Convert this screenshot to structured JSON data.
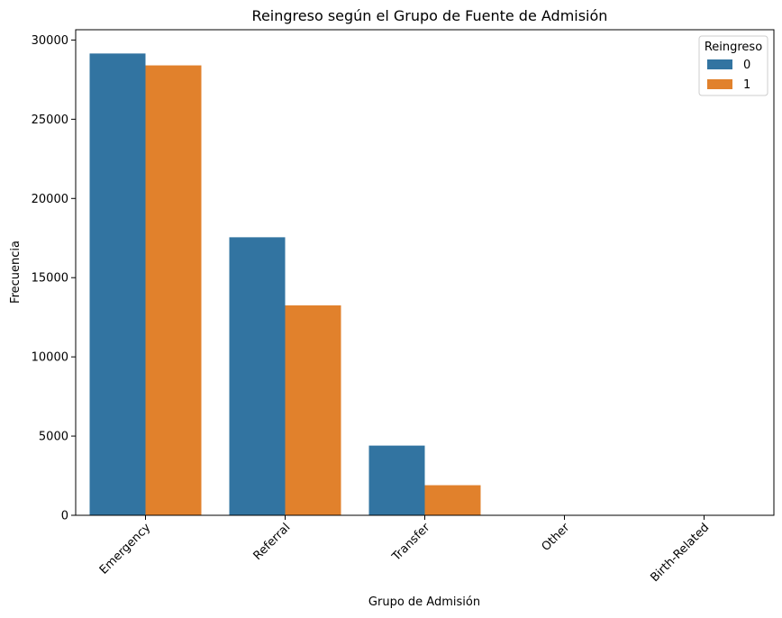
{
  "chart_data": {
    "type": "bar",
    "title": "Reingreso según el Grupo de Fuente de Admisión",
    "xlabel": "Grupo de Admisión",
    "ylabel": "Frecuencia",
    "categories": [
      "Emergency",
      "Referral",
      "Transfer",
      "Other",
      "Birth-Related"
    ],
    "series": [
      {
        "name": "0",
        "color": "#3274a1",
        "values": [
          29150,
          17550,
          4400,
          8,
          2
        ]
      },
      {
        "name": "1",
        "color": "#e1812c",
        "values": [
          28400,
          13250,
          1900,
          5,
          1
        ]
      }
    ],
    "ylim": [
      0,
      30650
    ],
    "yticks": [
      0,
      5000,
      10000,
      15000,
      20000,
      25000,
      30000
    ],
    "legend": {
      "title": "Reingreso",
      "placement": "top-right"
    },
    "grid": false
  }
}
